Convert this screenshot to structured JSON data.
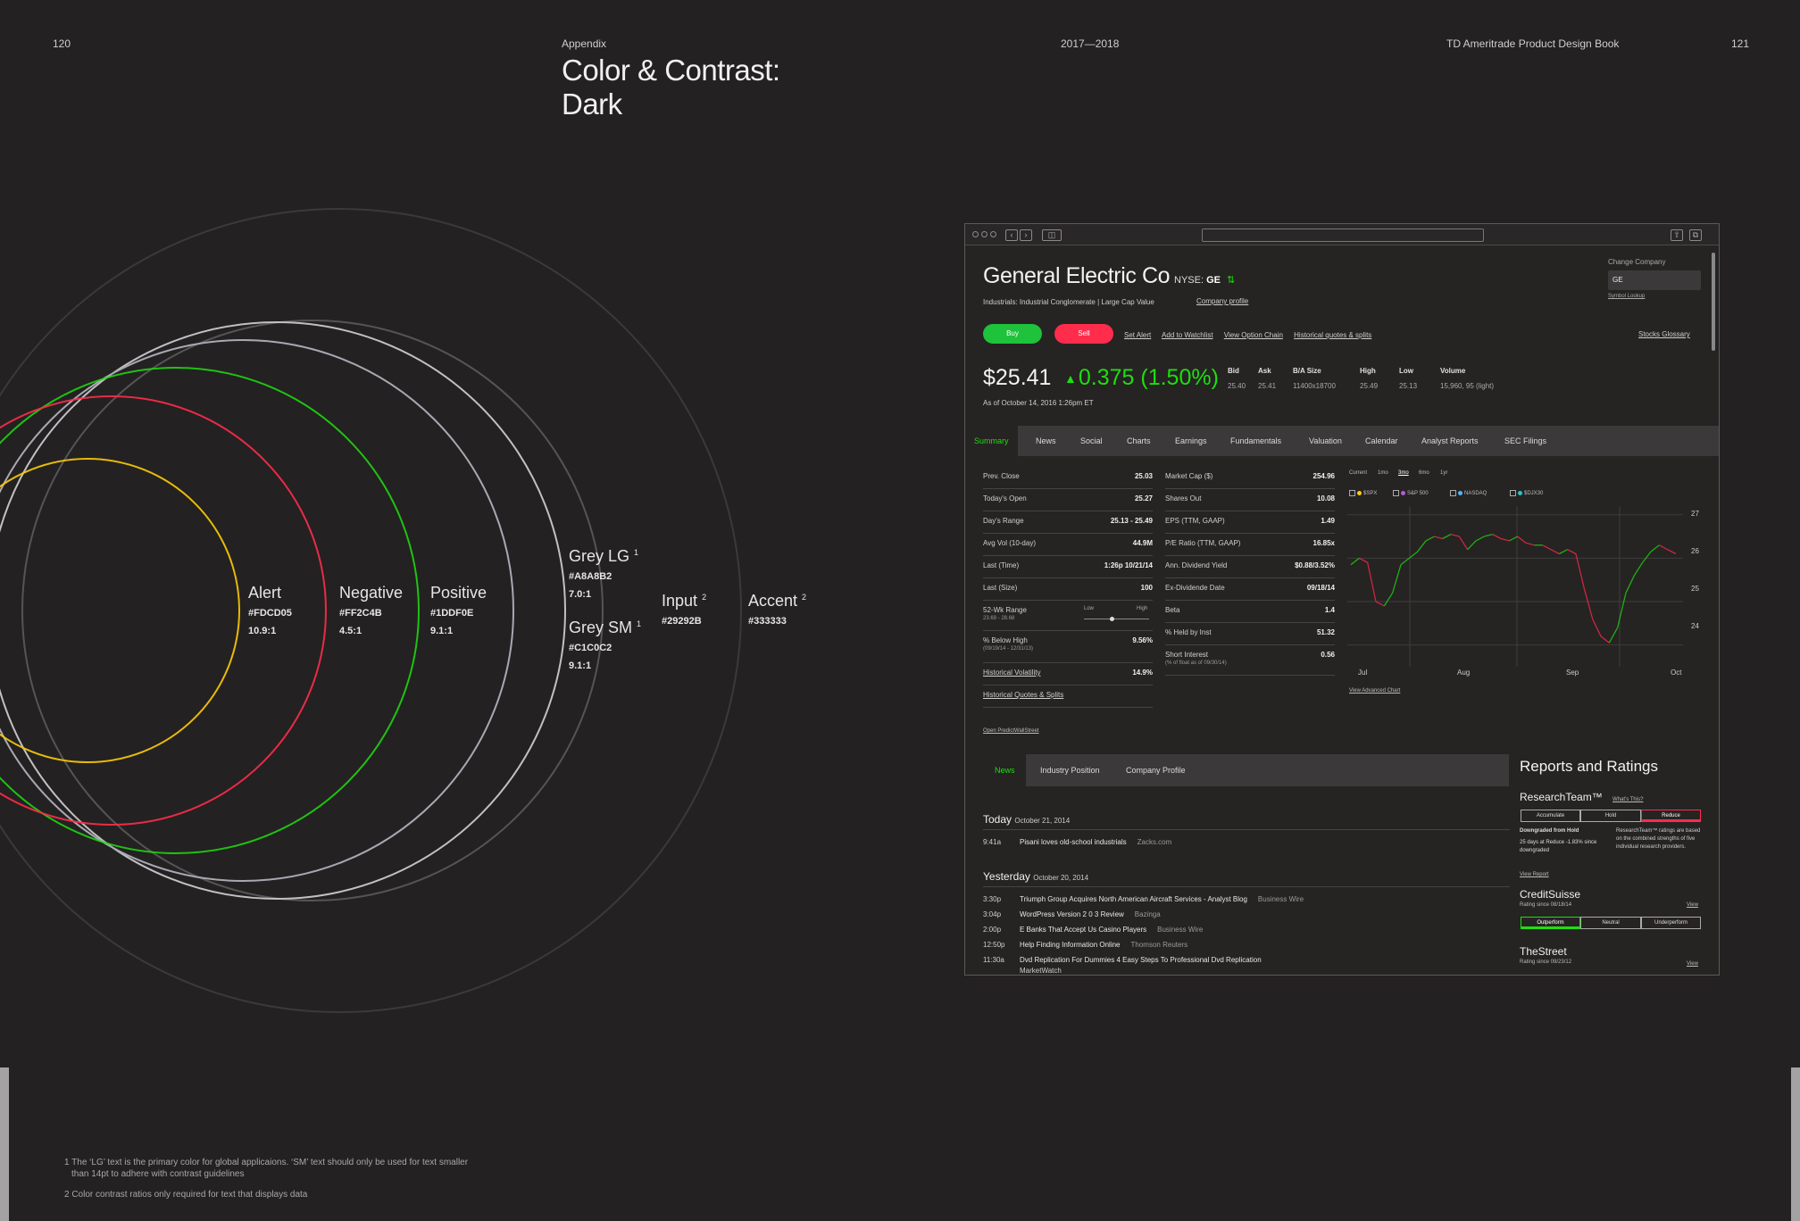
{
  "page": {
    "left_page_number": "120",
    "section": "Appendix",
    "center": "2017—2018",
    "book_title": "TD Ameritrade Product Design Book",
    "right_page_number": "121",
    "title_line1": "Color & Contrast:",
    "title_line2": "Dark"
  },
  "rings": [
    {
      "name": "Alert",
      "sup": "",
      "hex": "#FDCD05",
      "ratio": "10.9:1",
      "color": "#fdcd05"
    },
    {
      "name": "Negative",
      "sup": "",
      "hex": "#FF2C4B",
      "ratio": "4.5:1",
      "color": "#ff2c4b"
    },
    {
      "name": "Positive",
      "sup": "",
      "hex": "#1DDF0E",
      "ratio": "9.1:1",
      "color": "#1ddf0e"
    },
    {
      "name": "Grey LG",
      "sup": "1",
      "hex": "#A8A8B2",
      "ratio": "7.0:1",
      "color": "#a8a8b2"
    },
    {
      "name": "Grey SM",
      "sup": "1",
      "hex": "#C1C0C2",
      "ratio": "9.1:1",
      "color": "#c1c0c2"
    },
    {
      "name": "Input",
      "sup": "2",
      "hex": "#29292B",
      "ratio": "",
      "color": "#29292b"
    },
    {
      "name": "Accent",
      "sup": "2",
      "hex": "#333333",
      "ratio": "",
      "color": "#333333"
    }
  ],
  "footnotes": {
    "note1_line1": "1 The ‘LG’ text is the primary color for global applicaions. ‘SM’ text should only be used for text smaller",
    "note1_line2": "than 14pt to adhere with contrast guidelines",
    "note2": "2 Color contrast ratios only required for text that displays data"
  },
  "app": {
    "company": {
      "name": "General Electric Co",
      "exchange": "NYSE:",
      "symbol": "GE",
      "industry": "Industrials: Industrial Conglomerate | Large Cap Value",
      "profile_link": "Company profile",
      "change_company_label": "Change Company",
      "change_company_value": "GE",
      "symbol_lookup": "Symbol Lookup",
      "stocks_glossary": "Stocks Glossary"
    },
    "buttons": {
      "buy": "Buy",
      "sell": "Sell"
    },
    "actions": [
      "Set Alert",
      "Add to Watchlist",
      "View Option Chain",
      "Historical quotes & splits"
    ],
    "quote": {
      "price": "$25.41",
      "change": "0.375 (1.50%)",
      "as_of": "As of October 14, 2016 1:26pm ET",
      "cols": [
        {
          "h": "Bid",
          "v": "25.40"
        },
        {
          "h": "Ask",
          "v": "25.41"
        },
        {
          "h": "B/A Size",
          "v": "11400x18700"
        },
        {
          "h": "High",
          "v": "25.49"
        },
        {
          "h": "Low",
          "v": "25.13"
        },
        {
          "h": "Volume",
          "v": "15,960, 95 (light)"
        }
      ]
    },
    "tabs": [
      "Summary",
      "News",
      "Social",
      "Charts",
      "Earnings",
      "Fundamentals",
      "Valuation",
      "Calendar",
      "Analyst Reports",
      "SEC Filings"
    ],
    "stats_left": [
      {
        "k": "Prev. Close",
        "v": "25.03",
        "sub": ""
      },
      {
        "k": "Today's Open",
        "v": "25.27",
        "sub": ""
      },
      {
        "k": "Day's Range",
        "v": "25.13 - 25.49",
        "sub": ""
      },
      {
        "k": "Avg Vol (10-day)",
        "v": "44.9M",
        "sub": ""
      },
      {
        "k": "Last (Time)",
        "v": "1:26p 10/21/14",
        "sub": ""
      },
      {
        "k": "Last (Size)",
        "v": "100",
        "sub": ""
      },
      {
        "k": "52-Wk Range",
        "v": "",
        "sub": "23.69 - 28.68"
      },
      {
        "k": "% Below High",
        "v": "9.56%",
        "sub": "(09/19/14 - 12/31/13)"
      },
      {
        "k": "Historical Volatility",
        "v": "14.9%",
        "sub": ""
      },
      {
        "k": "Historical Quotes & Splits",
        "v": "",
        "sub": ""
      }
    ],
    "range_low": "Low",
    "range_high": "High",
    "range_fraction": 0.42,
    "stats_right": [
      {
        "k": "Market Cap ($)",
        "v": "254.96",
        "sub": ""
      },
      {
        "k": "Shares Out",
        "v": "10.08",
        "sub": ""
      },
      {
        "k": "EPS (TTM, GAAP)",
        "v": "1.49",
        "sub": ""
      },
      {
        "k": "P/E Ratio (TTM, GAAP)",
        "v": "16.85x",
        "sub": ""
      },
      {
        "k": "Ann. Dividend Yield",
        "v": "$0.88/3.52%",
        "sub": ""
      },
      {
        "k": "Ex-Dividende Date",
        "v": "09/18/14",
        "sub": ""
      },
      {
        "k": "Beta",
        "v": "1.4",
        "sub": ""
      },
      {
        "k": "% Held by Inst",
        "v": "51.32",
        "sub": ""
      },
      {
        "k": "Short Interest",
        "v": "0.56",
        "sub": "(% of float as of 09/30/14)"
      }
    ],
    "open_predict": "Open PredictWallStreet",
    "chart": {
      "ranges": [
        "Current",
        "1mo",
        "3mo",
        "6mo",
        "1yr"
      ],
      "legend": [
        {
          "name": "$SPX",
          "color": "#fdcd05"
        },
        {
          "name": "S&P 500",
          "color": "#b05cd6"
        },
        {
          "name": "NASDAQ",
          "color": "#4fb6ff"
        },
        {
          "name": "$DJX30",
          "color": "#22c7c7"
        }
      ],
      "yticks": [
        "27",
        "26",
        "25",
        "24"
      ],
      "xticks": [
        "Jul",
        "Aug",
        "Sep",
        "Oct"
      ],
      "advanced_link": "View Advanced Chart"
    },
    "chart_data": {
      "type": "line",
      "ylim": [
        23.5,
        27.2
      ],
      "series_values": [
        25.85,
        26.0,
        25.9,
        25.0,
        24.9,
        25.2,
        25.85,
        26.0,
        26.15,
        26.4,
        26.5,
        26.45,
        26.55,
        26.5,
        26.2,
        26.4,
        26.5,
        26.55,
        26.45,
        26.4,
        26.5,
        26.35,
        26.3,
        26.3,
        26.2,
        26.1,
        26.2,
        26.1,
        25.3,
        24.6,
        24.2,
        24.05,
        24.4,
        25.2,
        25.6,
        25.9,
        26.15,
        26.3,
        26.2,
        26.1
      ],
      "rising_color": "#1ddf0e",
      "falling_color": "#ff2c4b"
    },
    "news_tabs": [
      "News",
      "Industry Position",
      "Company Profile"
    ],
    "today_label": "Today",
    "today_date": "October 21, 2014",
    "today_items": [
      {
        "t": "9:41a",
        "h": "Pisani loves old-school industrials",
        "s": "Zacks.com"
      }
    ],
    "yesterday_label": "Yesterday",
    "yesterday_date": "October 20, 2014",
    "yesterday_items": [
      {
        "t": "3:30p",
        "h": "Triumph Group Acquires North American Aircraft Services - Analyst Blog",
        "s": "Business Wire"
      },
      {
        "t": "3:04p",
        "h": "WordPress Version 2 0 3 Review",
        "s": "Bazinga"
      },
      {
        "t": "2:00p",
        "h": "E Banks That Accept Us Casino Players",
        "s": "Business Wire"
      },
      {
        "t": "12:50p",
        "h": "Help Finding Information Online",
        "s": "Thomson Reuters"
      },
      {
        "t": "11:30a",
        "h": "Dvd Replication For Dummies 4 Easy Steps To Professional Dvd Replication",
        "s": ""
      }
    ],
    "cut_source": "MarketWatch",
    "ratings": {
      "title": "Reports and Ratings",
      "research_team": "ResearchTeam™",
      "whats_this": "What's This?",
      "rt_segments": [
        "Accumulate",
        "Hold",
        "Reduce"
      ],
      "rt_line1": "Downgraded from Hold",
      "rt_line2": "25 days at Reduce -1.83% since downgraded",
      "rt_desc": "ResearchTeam™ ratings are based on the combined strengths of five individual research providers.",
      "view_report": "View Report",
      "credit_suisse": "CreditSuisse",
      "cs_since": "Rating since 08/18/14",
      "view": "View",
      "cs_segments": [
        "Outperform",
        "Neutral",
        "Underperform"
      ],
      "the_street": "TheStreet",
      "ts_since": "Rating since 09/23/12"
    }
  }
}
